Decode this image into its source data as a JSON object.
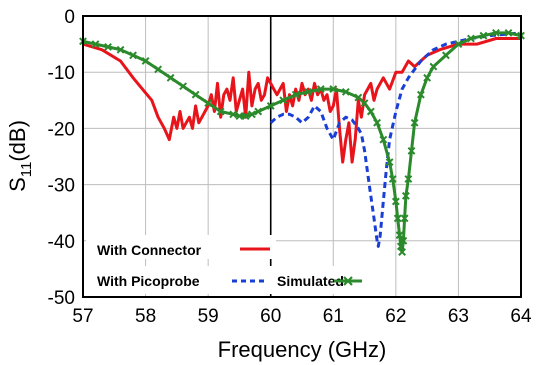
{
  "chart_data": {
    "type": "line",
    "xlabel": "Frequency (GHz)",
    "ylabel": {
      "base": "S",
      "sub": "11",
      "unit": "(dB)"
    },
    "xlim": [
      57,
      64
    ],
    "ylim": [
      -50,
      0
    ],
    "xticks": [
      "57",
      "58",
      "59",
      "60",
      "61",
      "62",
      "63",
      "64"
    ],
    "yticks": [
      "0",
      "-10",
      "-20",
      "-30",
      "-40",
      "-50"
    ],
    "grid": true,
    "legend_placement": "bottom-left",
    "annotations": [
      {
        "type": "vertical-line",
        "x": 60
      }
    ],
    "series": [
      {
        "name": "With Connector",
        "color": "#e8141b",
        "style": "solid",
        "x": [
          57,
          57.3,
          57.6,
          57.8,
          57.95,
          58.1,
          58.2,
          58.3,
          58.38,
          58.45,
          58.5,
          58.55,
          58.6,
          58.65,
          58.7,
          58.75,
          58.8,
          58.85,
          58.9,
          58.95,
          59.0,
          59.05,
          59.1,
          59.15,
          59.2,
          59.25,
          59.3,
          59.35,
          59.4,
          59.45,
          59.5,
          59.55,
          59.6,
          59.65,
          59.7,
          59.75,
          59.8,
          59.85,
          59.9,
          59.95,
          60.0,
          60.05,
          60.1,
          60.15,
          60.2,
          60.25,
          60.3,
          60.35,
          60.4,
          60.45,
          60.5,
          60.55,
          60.6,
          60.65,
          60.7,
          60.75,
          60.8,
          60.85,
          60.9,
          60.95,
          61.0,
          61.05,
          61.1,
          61.15,
          61.2,
          61.25,
          61.3,
          61.35,
          61.4,
          61.45,
          61.5,
          61.55,
          61.6,
          61.65,
          61.7,
          61.8,
          61.9,
          62.0,
          62.1,
          62.2,
          62.3,
          62.5,
          62.7,
          63.0,
          63.3,
          63.6,
          64.0
        ],
        "values": [
          -5,
          -6,
          -8,
          -11,
          -13,
          -15,
          -18,
          -20,
          -22,
          -18,
          -20,
          -17,
          -20,
          -19,
          -18,
          -20,
          -16,
          -19,
          -18,
          -17,
          -16,
          -14,
          -17,
          -12,
          -18,
          -14,
          -13,
          -15,
          -11,
          -17,
          -15,
          -13,
          -18,
          -10,
          -16,
          -13,
          -12,
          -15,
          -14,
          -11,
          -12,
          -13,
          -14,
          -13,
          -12,
          -17,
          -14,
          -16,
          -13,
          -15,
          -12,
          -14,
          -13,
          -15,
          -12,
          -14,
          -13,
          -15,
          -14,
          -17,
          -16,
          -13,
          -20,
          -26,
          -22,
          -19,
          -26,
          -22,
          -15,
          -18,
          -14,
          -13,
          -12,
          -15,
          -13,
          -11,
          -13,
          -10,
          -10,
          -8,
          -9,
          -7,
          -6,
          -5,
          -5,
          -4,
          -4
        ]
      },
      {
        "name": "With Picoprobe",
        "color": "#1a3fd6",
        "style": "dashed",
        "x": [
          60.0,
          60.1,
          60.2,
          60.3,
          60.4,
          60.5,
          60.6,
          60.7,
          60.8,
          60.9,
          61.0,
          61.1,
          61.2,
          61.3,
          61.4,
          61.45,
          61.5,
          61.55,
          61.6,
          61.65,
          61.7,
          61.72,
          61.75,
          61.8,
          61.85,
          61.9,
          62.0,
          62.1,
          62.2,
          62.3,
          62.4,
          62.5,
          62.6,
          62.8,
          63.0,
          63.2,
          63.5,
          64.0
        ],
        "values": [
          -19,
          -18,
          -17.5,
          -17.5,
          -18,
          -19,
          -18,
          -16,
          -17,
          -20,
          -22,
          -19,
          -18,
          -18.5,
          -20,
          -21,
          -24,
          -28,
          -32,
          -36,
          -40,
          -41,
          -39,
          -33,
          -27,
          -22,
          -17,
          -13,
          -11,
          -9.5,
          -8,
          -7,
          -6,
          -5,
          -4.5,
          -4,
          -3.5,
          -3
        ]
      },
      {
        "name": "Simulated",
        "color": "#2b8a2b",
        "style": "solid-x-markers",
        "x": [
          57.0,
          57.2,
          57.4,
          57.6,
          57.8,
          58.0,
          58.2,
          58.4,
          58.6,
          58.8,
          59.0,
          59.2,
          59.4,
          59.5,
          59.6,
          59.7,
          59.8,
          60.0,
          60.2,
          60.4,
          60.6,
          60.8,
          61.0,
          61.2,
          61.4,
          61.5,
          61.6,
          61.7,
          61.8,
          61.9,
          61.95,
          62.0,
          62.03,
          62.06,
          62.08,
          62.1,
          62.12,
          62.14,
          62.16,
          62.2,
          62.25,
          62.3,
          62.4,
          62.5,
          62.6,
          62.8,
          63.0,
          63.2,
          63.4,
          63.6,
          63.8,
          64.0
        ],
        "values": [
          -4.5,
          -5,
          -5.5,
          -6,
          -7,
          -8,
          -9.5,
          -11,
          -12.5,
          -14,
          -15.5,
          -17,
          -17.5,
          -17.8,
          -17.8,
          -17.5,
          -17,
          -16,
          -15,
          -14,
          -13.5,
          -13,
          -13,
          -13.5,
          -14.5,
          -15.5,
          -17,
          -19,
          -22,
          -26,
          -29,
          -33,
          -36,
          -39,
          -41,
          -42,
          -40,
          -36,
          -32,
          -29,
          -24,
          -19,
          -14,
          -11,
          -9,
          -7,
          -5,
          -4,
          -3.5,
          -3,
          -3,
          -3.5
        ]
      }
    ]
  }
}
